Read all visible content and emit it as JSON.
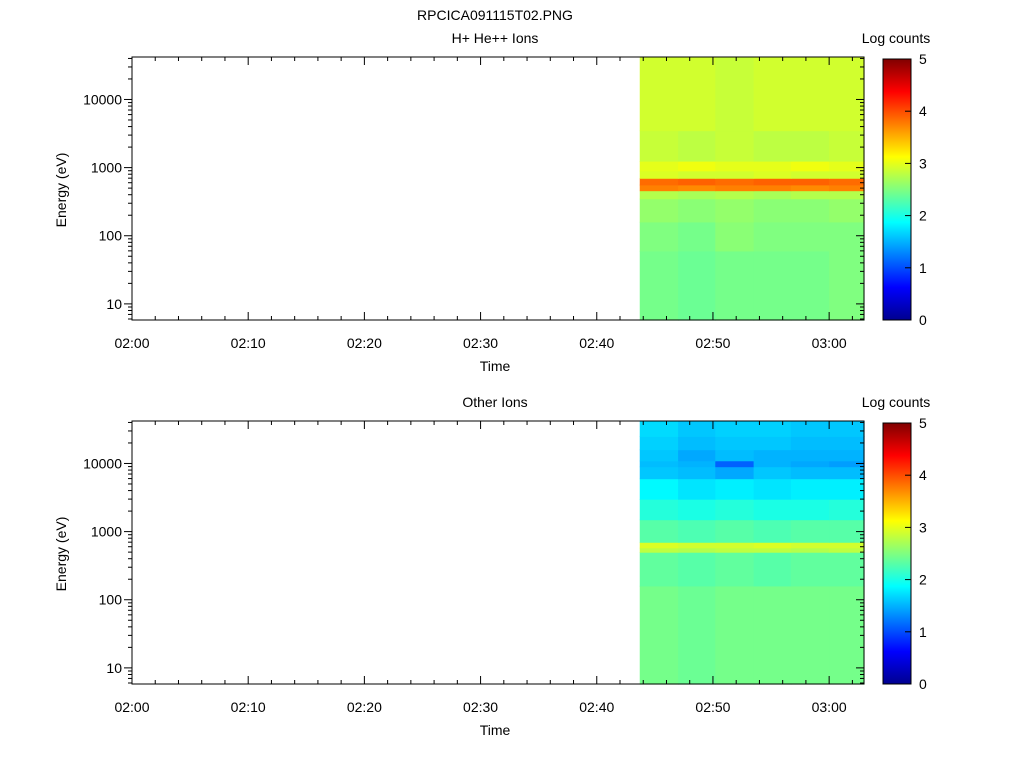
{
  "figure": {
    "title": "RPCICA091115T02.PNG"
  },
  "chart_data": [
    {
      "type": "heatmap",
      "title": "H+ He++ Ions",
      "xlabel": "Time",
      "ylabel": "Energy (eV)",
      "y_scale": "log",
      "ylim": [
        5.8,
        42000
      ],
      "x_range": [
        "02:00",
        "03:03"
      ],
      "x_ticks": [
        "02:00",
        "02:10",
        "02:20",
        "02:30",
        "02:40",
        "02:50",
        "03:00"
      ],
      "y_ticks": [
        "10",
        "100",
        "1000",
        "10000"
      ],
      "colorbar": {
        "label": "Log counts",
        "min": 0,
        "max": 5,
        "ticks": [
          "0",
          "1",
          "2",
          "3",
          "4",
          "5"
        ]
      },
      "data_start": "02:43.7",
      "data_end": "03:03",
      "columns": [
        {
          "t0": "02:43.7",
          "t1": "02:47.0"
        },
        {
          "t0": "02:47.0",
          "t1": "02:50.2"
        },
        {
          "t0": "02:50.2",
          "t1": "02:53.5"
        },
        {
          "t0": "02:53.5",
          "t1": "02:56.7"
        },
        {
          "t0": "02:56.7",
          "t1": "03:00.0"
        },
        {
          "t0": "03:00.0",
          "t1": "03:03"
        }
      ],
      "bands": [
        {
          "e_min": 5.8,
          "e_max": 60,
          "values": [
            2.45,
            2.4,
            2.45,
            2.45,
            2.45,
            2.5
          ]
        },
        {
          "e_min": 60,
          "e_max": 160,
          "values": [
            2.5,
            2.45,
            2.55,
            2.5,
            2.5,
            2.5
          ]
        },
        {
          "e_min": 160,
          "e_max": 350,
          "values": [
            2.6,
            2.55,
            2.6,
            2.55,
            2.55,
            2.6
          ]
        },
        {
          "e_min": 350,
          "e_max": 460,
          "values": [
            2.75,
            2.7,
            2.75,
            2.7,
            2.75,
            2.75
          ]
        },
        {
          "e_min": 460,
          "e_max": 560,
          "values": [
            3.75,
            3.7,
            3.75,
            3.75,
            3.7,
            3.75
          ]
        },
        {
          "e_min": 560,
          "e_max": 700,
          "values": [
            3.85,
            3.9,
            3.85,
            3.9,
            3.9,
            3.85
          ]
        },
        {
          "e_min": 700,
          "e_max": 900,
          "values": [
            2.95,
            2.9,
            2.9,
            2.95,
            2.9,
            2.9
          ]
        },
        {
          "e_min": 900,
          "e_max": 1250,
          "values": [
            3.0,
            3.05,
            3.0,
            3.0,
            3.05,
            3.0
          ]
        },
        {
          "e_min": 1250,
          "e_max": 3500,
          "values": [
            2.85,
            2.8,
            2.85,
            2.8,
            2.8,
            2.85
          ]
        },
        {
          "e_min": 3500,
          "e_max": 42000,
          "values": [
            2.9,
            2.9,
            2.85,
            2.9,
            2.9,
            2.9
          ]
        }
      ]
    },
    {
      "type": "heatmap",
      "title": "Other Ions",
      "xlabel": "Time",
      "ylabel": "Energy (eV)",
      "y_scale": "log",
      "ylim": [
        5.8,
        42000
      ],
      "x_range": [
        "02:00",
        "03:03"
      ],
      "x_ticks": [
        "02:00",
        "02:10",
        "02:20",
        "02:30",
        "02:40",
        "02:50",
        "03:00"
      ],
      "y_ticks": [
        "10",
        "100",
        "1000",
        "10000"
      ],
      "colorbar": {
        "label": "Log counts",
        "min": 0,
        "max": 5,
        "ticks": [
          "0",
          "1",
          "2",
          "3",
          "4",
          "5"
        ]
      },
      "data_start": "02:43.7",
      "data_end": "03:03",
      "columns": [
        {
          "t0": "02:43.7",
          "t1": "02:47.0"
        },
        {
          "t0": "02:47.0",
          "t1": "02:50.2"
        },
        {
          "t0": "02:50.2",
          "t1": "02:53.5"
        },
        {
          "t0": "02:53.5",
          "t1": "02:56.7"
        },
        {
          "t0": "02:56.7",
          "t1": "03:00.0"
        },
        {
          "t0": "03:00.0",
          "t1": "03:03"
        }
      ],
      "bands": [
        {
          "e_min": 5.8,
          "e_max": 160,
          "values": [
            2.45,
            2.4,
            2.45,
            2.45,
            2.45,
            2.45
          ]
        },
        {
          "e_min": 160,
          "e_max": 500,
          "values": [
            2.35,
            2.3,
            2.35,
            2.3,
            2.35,
            2.35
          ]
        },
        {
          "e_min": 500,
          "e_max": 580,
          "values": [
            2.8,
            2.75,
            2.8,
            2.8,
            2.75,
            2.8
          ]
        },
        {
          "e_min": 580,
          "e_max": 700,
          "values": [
            2.95,
            2.9,
            2.9,
            2.95,
            2.9,
            2.9
          ]
        },
        {
          "e_min": 700,
          "e_max": 1500,
          "values": [
            2.3,
            2.25,
            2.3,
            2.25,
            2.3,
            2.3
          ]
        },
        {
          "e_min": 1500,
          "e_max": 3000,
          "values": [
            2.05,
            2.0,
            2.05,
            2.0,
            2.0,
            2.05
          ]
        },
        {
          "e_min": 3000,
          "e_max": 6000,
          "values": [
            1.85,
            1.75,
            1.8,
            1.75,
            1.8,
            1.8
          ]
        },
        {
          "e_min": 6000,
          "e_max": 9000,
          "values": [
            1.6,
            1.55,
            1.45,
            1.6,
            1.55,
            1.55
          ]
        },
        {
          "e_min": 9000,
          "e_max": 11000,
          "values": [
            1.55,
            1.5,
            1.1,
            1.5,
            1.45,
            1.4
          ]
        },
        {
          "e_min": 11000,
          "e_max": 16000,
          "values": [
            1.6,
            1.45,
            1.55,
            1.5,
            1.5,
            1.5
          ]
        },
        {
          "e_min": 16000,
          "e_max": 25000,
          "values": [
            1.65,
            1.55,
            1.6,
            1.6,
            1.55,
            1.55
          ]
        },
        {
          "e_min": 25000,
          "e_max": 42000,
          "values": [
            1.7,
            1.6,
            1.65,
            1.65,
            1.6,
            1.6
          ]
        }
      ]
    }
  ]
}
